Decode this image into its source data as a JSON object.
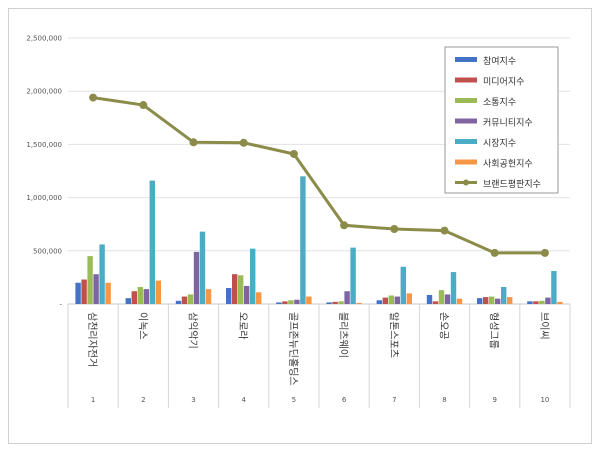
{
  "chart_data": {
    "type": "bar",
    "title": "",
    "xlabel": "",
    "ylabel": "",
    "ylim": [
      0,
      2500000
    ],
    "yticks": [
      "2,500,000",
      "2,000,000",
      "1,500,000",
      "1,000,000",
      "500,000",
      "-"
    ],
    "ytick_values": [
      2500000,
      2000000,
      1500000,
      1000000,
      500000,
      0
    ],
    "categories": [
      "삼천리자전거",
      "이녹스",
      "삼익악기",
      "오로라",
      "골프존뉴딘홀딩스",
      "블리츠웨이",
      "알톤스포츠",
      "손오공",
      "형성그룹",
      "브이씨"
    ],
    "index_labels": [
      "1",
      "2",
      "3",
      "4",
      "5",
      "6",
      "7",
      "8",
      "9",
      "10"
    ],
    "series": [
      {
        "name": "참여지수",
        "color": "#4472c4",
        "values": [
          200000,
          55000,
          30000,
          150000,
          15000,
          15000,
          35000,
          85000,
          55000,
          25000
        ]
      },
      {
        "name": "미디어지수",
        "color": "#c0504d",
        "values": [
          230000,
          120000,
          70000,
          280000,
          25000,
          20000,
          60000,
          25000,
          65000,
          25000
        ]
      },
      {
        "name": "소통지수",
        "color": "#9bbb59",
        "values": [
          450000,
          160000,
          90000,
          270000,
          35000,
          25000,
          80000,
          130000,
          70000,
          30000
        ]
      },
      {
        "name": "커뮤니티지수",
        "color": "#8064a2",
        "values": [
          280000,
          140000,
          490000,
          170000,
          40000,
          120000,
          70000,
          90000,
          50000,
          60000
        ]
      },
      {
        "name": "시장지수",
        "color": "#4bacc6",
        "values": [
          560000,
          1160000,
          680000,
          520000,
          1200000,
          530000,
          350000,
          300000,
          160000,
          310000
        ]
      },
      {
        "name": "사회공헌지수",
        "color": "#f79646",
        "values": [
          200000,
          220000,
          140000,
          110000,
          70000,
          10000,
          100000,
          50000,
          65000,
          20000
        ]
      }
    ],
    "line_series": {
      "name": "브랜드평판지수",
      "color": "#8b8b4a",
      "values": [
        1940000,
        1870000,
        1520000,
        1515000,
        1410000,
        740000,
        705000,
        690000,
        480000,
        480000
      ]
    },
    "legend_position": "top-right",
    "grid": true
  }
}
